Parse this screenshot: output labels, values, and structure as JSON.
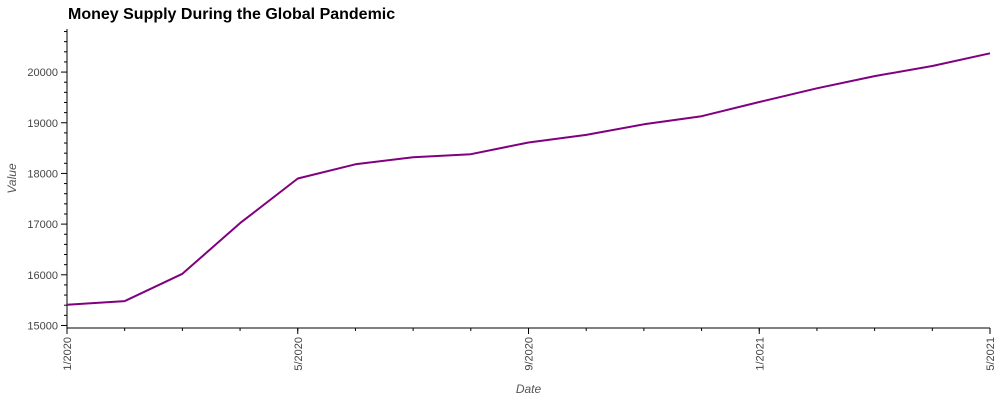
{
  "chart_data": {
    "type": "line",
    "title": "Money Supply During the Global Pandemic",
    "xlabel": "Date",
    "ylabel": "Value",
    "x": [
      "2020-01",
      "2020-02",
      "2020-03",
      "2020-04",
      "2020-05",
      "2020-06",
      "2020-07",
      "2020-08",
      "2020-09",
      "2020-10",
      "2020-11",
      "2020-12",
      "2021-01",
      "2021-02",
      "2021-03",
      "2021-04",
      "2021-05"
    ],
    "series": [
      {
        "values": [
          15410,
          15480,
          16020,
          17020,
          17900,
          18180,
          18320,
          18380,
          18610,
          18760,
          18970,
          19130,
          19410,
          19680,
          19920,
          20120,
          20370
        ],
        "color": "#800080"
      }
    ],
    "xticks": [
      {
        "value": "2020-01",
        "label": "1/2020"
      },
      {
        "value": "2020-05",
        "label": "5/2020"
      },
      {
        "value": "2020-09",
        "label": "9/2020"
      },
      {
        "value": "2021-01",
        "label": "1/2021"
      },
      {
        "value": "2021-05",
        "label": "5/2021"
      }
    ],
    "yticks": [
      15000,
      16000,
      17000,
      18000,
      19000,
      20000
    ],
    "xlim": [
      "2020-01",
      "2021-05"
    ],
    "ylim": [
      14950,
      20850
    ],
    "grid": false,
    "axis_color": "#000000"
  }
}
